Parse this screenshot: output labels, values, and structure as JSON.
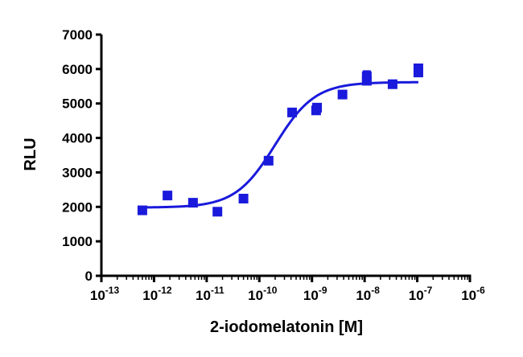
{
  "chart_data": {
    "type": "scatter",
    "title": "",
    "xlabel": "2-iodomelatonin [M]",
    "ylabel": "RLU",
    "x_scale": "log",
    "xlim": [
      1e-13,
      1e-06
    ],
    "ylim": [
      0,
      7000
    ],
    "x_ticks": [
      {
        "base": "10",
        "exp": "-13",
        "value": 1e-13
      },
      {
        "base": "10",
        "exp": "-12",
        "value": 1e-12
      },
      {
        "base": "10",
        "exp": "-11",
        "value": 1e-11
      },
      {
        "base": "10",
        "exp": "-10",
        "value": 1e-10
      },
      {
        "base": "10",
        "exp": "-9",
        "value": 1e-09
      },
      {
        "base": "10",
        "exp": "-8",
        "value": 1e-08
      },
      {
        "base": "10",
        "exp": "-7",
        "value": 1e-07
      },
      {
        "base": "10",
        "exp": "-6",
        "value": 1e-06
      }
    ],
    "y_ticks": [
      "0",
      "1000",
      "2000",
      "3000",
      "4000",
      "5000",
      "6000",
      "7000"
    ],
    "grid": false,
    "legend": "none",
    "colors": {
      "series": "#1a1adc",
      "axis": "#000000"
    },
    "series": [
      {
        "points": [
          {
            "x": 6e-13,
            "y": 1900
          },
          {
            "x": 1.8e-12,
            "y": 2330
          },
          {
            "x": 5.5e-12,
            "y": 2120
          },
          {
            "x": 1.6e-11,
            "y": 1860
          },
          {
            "x": 5e-11,
            "y": 2240
          },
          {
            "x": 1.5e-10,
            "y": 3340
          },
          {
            "x": 4.2e-10,
            "y": 4740
          },
          {
            "x": 1.2e-09,
            "y": 4800
          },
          {
            "x": 1.25e-09,
            "y": 4880
          },
          {
            "x": 3.8e-09,
            "y": 5260
          },
          {
            "x": 1.1e-08,
            "y": 5660
          },
          {
            "x": 1.1e-08,
            "y": 5790,
            "err": 150
          },
          {
            "x": 3.4e-08,
            "y": 5560
          },
          {
            "x": 1.05e-07,
            "y": 5900
          },
          {
            "x": 1.05e-07,
            "y": 6020
          }
        ],
        "fit": {
          "model": "sigmoidal dose-response",
          "bottom": 1980,
          "top": 5620,
          "log_ec50": -9.7,
          "hill": 1.15
        }
      }
    ]
  }
}
